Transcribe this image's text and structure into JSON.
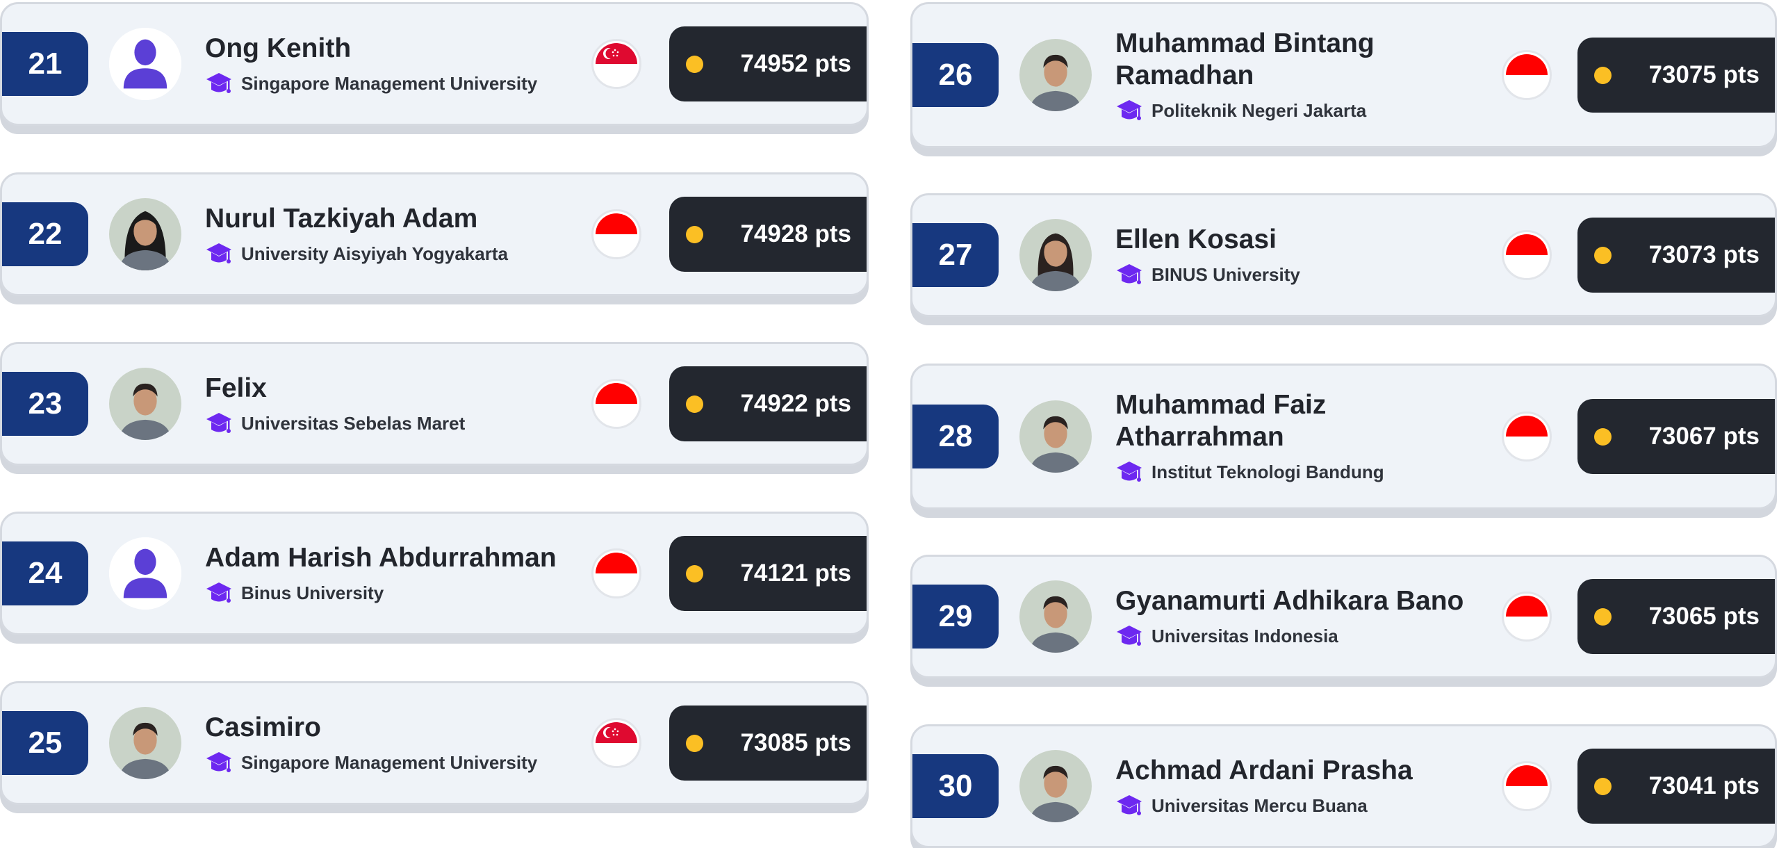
{
  "colors": {
    "rank_badge": "#17387f",
    "points_bg": "#23272f",
    "coin": "#fbbf24",
    "grad_cap": "#6d28f0",
    "card_bg": "#eff3f8"
  },
  "entries": [
    {
      "rank": "21",
      "name": "Ong Kenith",
      "university": "Singapore Management University",
      "country": "Singapore",
      "flag": "sg",
      "points": "74952 pts",
      "avatar": "default-avatar"
    },
    {
      "rank": "22",
      "name": "Nurul Tazkiyah Adam",
      "university": "University Aisyiyah Yogyakarta",
      "country": "Indonesia",
      "flag": "id",
      "points": "74928 pts",
      "avatar": "photo-hijab"
    },
    {
      "rank": "23",
      "name": "Felix",
      "university": "Universitas Sebelas Maret",
      "country": "Indonesia",
      "flag": "id",
      "points": "74922 pts",
      "avatar": "photo"
    },
    {
      "rank": "24",
      "name": "Adam Harish Abdurrahman",
      "university": "Binus University",
      "country": "Indonesia",
      "flag": "id",
      "points": "74121 pts",
      "avatar": "default-avatar"
    },
    {
      "rank": "25",
      "name": "Casimiro",
      "university": "Singapore Management University",
      "country": "Singapore",
      "flag": "sg",
      "points": "73085 pts",
      "avatar": "photo"
    },
    {
      "rank": "26",
      "name": "Muhammad Bintang Ramadhan",
      "university": "Politeknik Negeri Jakarta",
      "country": "Indonesia",
      "flag": "id",
      "points": "73075 pts",
      "avatar": "photo"
    },
    {
      "rank": "27",
      "name": "Ellen Kosasi",
      "university": "BINUS University",
      "country": "Indonesia",
      "flag": "id",
      "points": "73073 pts",
      "avatar": "photo-long-hair"
    },
    {
      "rank": "28",
      "name": "Muhammad Faiz Atharrahman",
      "university": "Institut Teknologi Bandung",
      "country": "Indonesia",
      "flag": "id",
      "points": "73067 pts",
      "avatar": "photo"
    },
    {
      "rank": "29",
      "name": "Gyanamurti Adhikara Bano",
      "university": "Universitas Indonesia",
      "country": "Indonesia",
      "flag": "id",
      "points": "73065 pts",
      "avatar": "photo"
    },
    {
      "rank": "30",
      "name": "Achmad Ardani Prasha",
      "university": "Universitas Mercu Buana",
      "country": "Indonesia",
      "flag": "id",
      "points": "73041 pts",
      "avatar": "photo"
    }
  ]
}
